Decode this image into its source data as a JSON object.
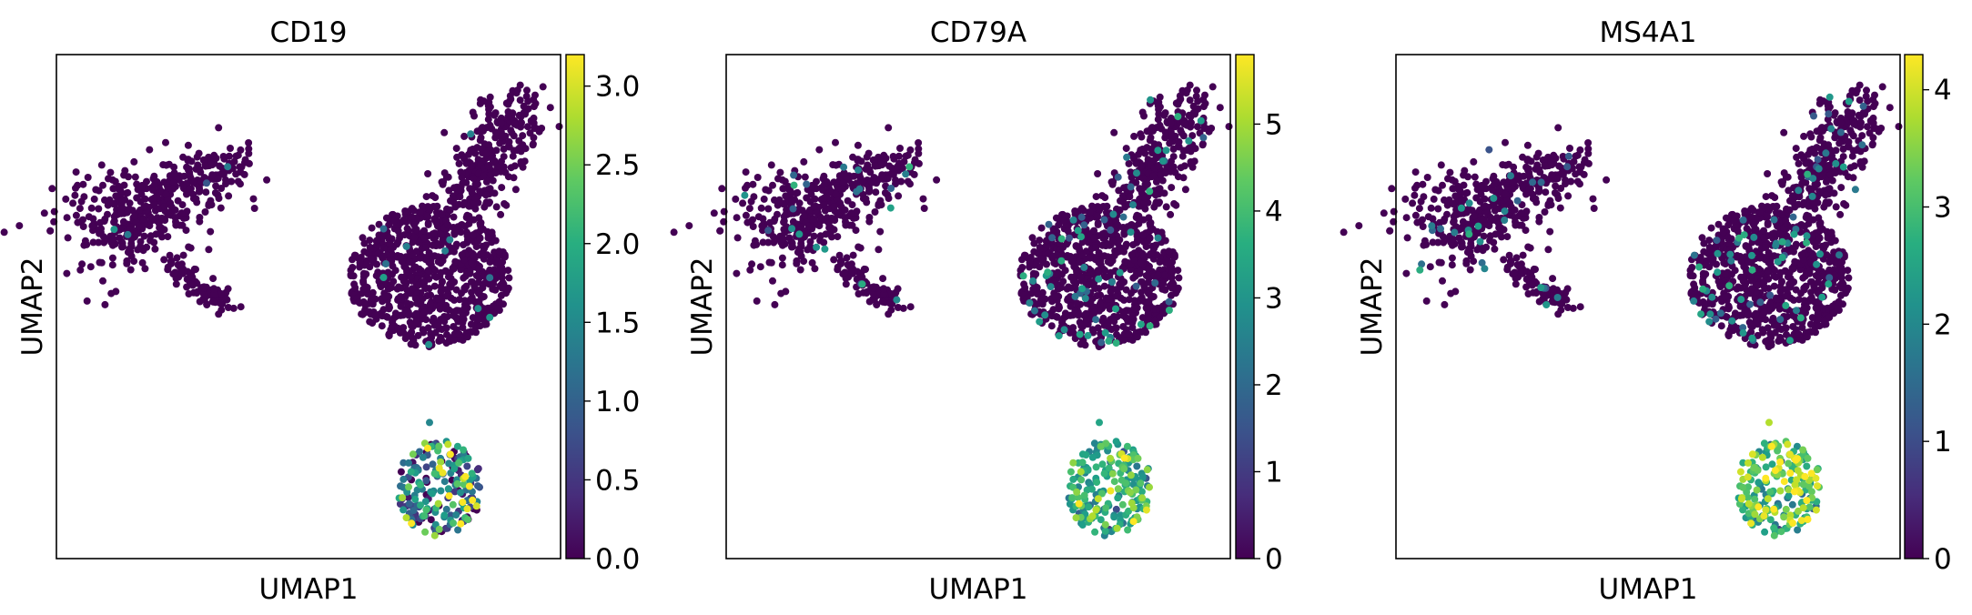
{
  "chart_data": [
    {
      "type": "scatter",
      "title": "CD19",
      "xlabel": "UMAP1",
      "ylabel": "UMAP2",
      "colormap": "viridis",
      "colorbar": {
        "min": 0,
        "max": 3.2,
        "ticks": [
          "0.0",
          "0.5",
          "1.0",
          "1.5",
          "2.0",
          "2.5",
          "3.0"
        ],
        "tick_values": [
          0,
          0.5,
          1.0,
          1.5,
          2.0,
          2.5,
          3.0
        ]
      },
      "expression": {
        "cluster_a_high_fraction": 0.01,
        "cluster_b_high_fraction": 0.01,
        "cluster_c_mean": 1.3,
        "cluster_c_spread": 0.9
      }
    },
    {
      "type": "scatter",
      "title": "CD79A",
      "xlabel": "UMAP1",
      "ylabel": "UMAP2",
      "colormap": "viridis",
      "colorbar": {
        "min": 0,
        "max": 5.8,
        "ticks": [
          "0",
          "1",
          "2",
          "3",
          "4",
          "5"
        ],
        "tick_values": [
          0,
          1,
          2,
          3,
          4,
          5
        ]
      },
      "expression": {
        "cluster_a_high_fraction": 0.05,
        "cluster_b_high_fraction": 0.06,
        "cluster_c_mean": 3.6,
        "cluster_c_spread": 0.5
      }
    },
    {
      "type": "scatter",
      "title": "MS4A1",
      "xlabel": "UMAP1",
      "ylabel": "UMAP2",
      "colormap": "viridis",
      "colorbar": {
        "min": 0,
        "max": 4.3,
        "ticks": [
          "0",
          "1",
          "2",
          "3",
          "4"
        ],
        "tick_values": [
          0,
          1,
          2,
          3,
          4
        ]
      },
      "expression": {
        "cluster_a_high_fraction": 0.06,
        "cluster_b_high_fraction": 0.06,
        "cluster_c_mean": 3.1,
        "cluster_c_spread": 0.6
      }
    }
  ]
}
